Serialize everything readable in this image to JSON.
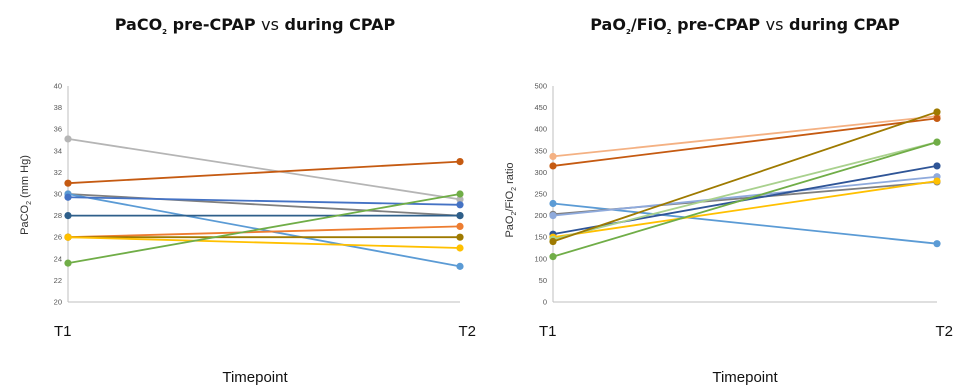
{
  "chart_data": [
    {
      "type": "line",
      "title_parts": [
        "PaCO",
        "2",
        " pre-CPAP ",
        "vs",
        " during CPAP"
      ],
      "xlabel": "Timepoint",
      "ylabel_parts": [
        "PaCO",
        "2",
        " (mm Hg)"
      ],
      "categories": [
        "T1",
        "T2"
      ],
      "ylim": [
        20,
        40
      ],
      "yticks": [
        "20",
        "22",
        "24",
        "26",
        "28",
        "30",
        "32",
        "34",
        "36",
        "38",
        "40"
      ],
      "grid": false,
      "series": [
        {
          "values": [
            35.1,
            29.5
          ],
          "color": "#b5b5b5"
        },
        {
          "values": [
            31.0,
            33.0
          ],
          "color": "#c55a11"
        },
        {
          "values": [
            30.0,
            28.0
          ],
          "color": "#7f7f7f"
        },
        {
          "values": [
            30.0,
            23.3
          ],
          "color": "#5b9bd5"
        },
        {
          "values": [
            29.7,
            29.0
          ],
          "color": "#4472c4"
        },
        {
          "values": [
            28.0,
            28.0
          ],
          "color": "#2e5f8a"
        },
        {
          "values": [
            26.0,
            27.0
          ],
          "color": "#ed7d31"
        },
        {
          "values": [
            26.0,
            26.0
          ],
          "color": "#9e7a00"
        },
        {
          "values": [
            26.0,
            25.0
          ],
          "color": "#ffc000"
        },
        {
          "values": [
            23.6,
            30.0
          ],
          "color": "#70ad47"
        }
      ]
    },
    {
      "type": "line",
      "title_parts": [
        "PaO",
        "2",
        "/FiO",
        "2",
        " pre-CPAP ",
        "vs",
        " during CPAP"
      ],
      "xlabel": "Timepoint",
      "ylabel_parts": [
        "PaO",
        "2",
        "/FiO",
        "2",
        " ratio"
      ],
      "categories": [
        "T1",
        "T2"
      ],
      "ylim": [
        0,
        500
      ],
      "yticks": [
        "0",
        "50",
        "100",
        "150",
        "200",
        "250",
        "300",
        "350",
        "400",
        "450",
        "500"
      ],
      "grid": false,
      "series": [
        {
          "values": [
            337,
            430
          ],
          "color": "#f4b183"
        },
        {
          "values": [
            315,
            425
          ],
          "color": "#c55a11"
        },
        {
          "values": [
            228,
            135
          ],
          "color": "#5b9bd5"
        },
        {
          "values": [
            203,
            278
          ],
          "color": "#7f7f7f"
        },
        {
          "values": [
            200,
            290
          ],
          "color": "#8faadc"
        },
        {
          "values": [
            157,
            315
          ],
          "color": "#2f5597"
        },
        {
          "values": [
            150,
            280
          ],
          "color": "#ffc000"
        },
        {
          "values": [
            145,
            370
          ],
          "color": "#a9d18e"
        },
        {
          "values": [
            140,
            440
          ],
          "color": "#9e7a00"
        },
        {
          "values": [
            105,
            370
          ],
          "color": "#70ad47"
        }
      ]
    }
  ]
}
